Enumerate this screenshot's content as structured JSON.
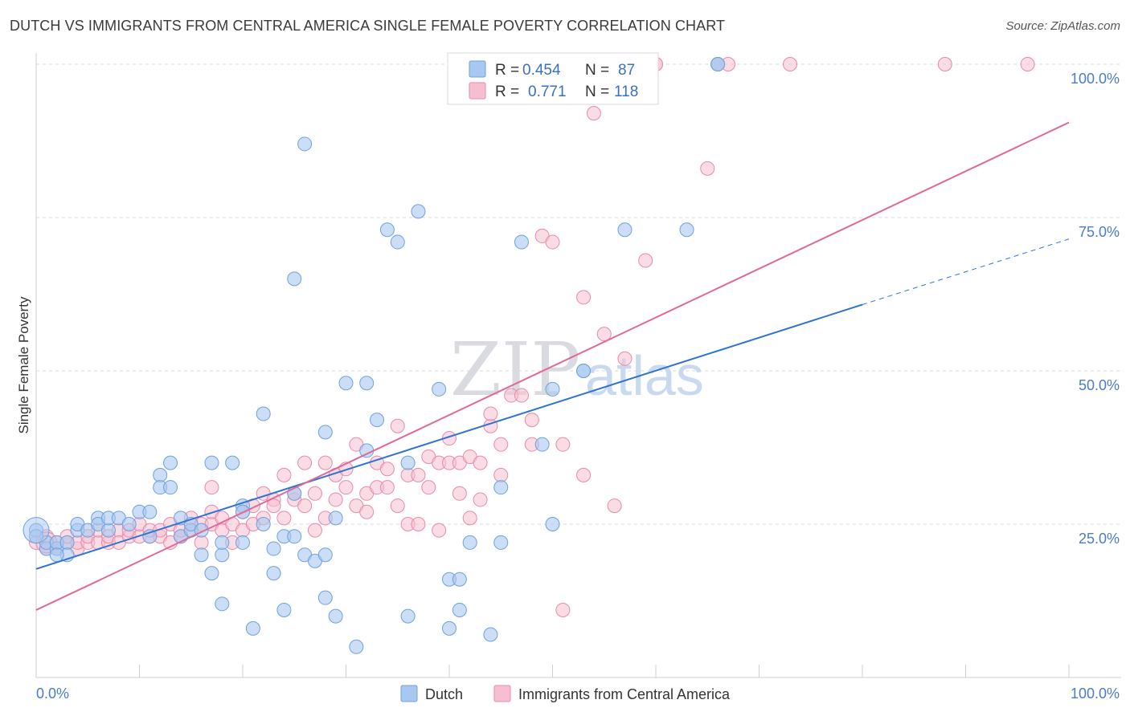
{
  "title": "DUTCH VS IMMIGRANTS FROM CENTRAL AMERICA SINGLE FEMALE POVERTY CORRELATION CHART",
  "source": "Source: ZipAtlas.com",
  "watermark": {
    "zip": "ZIP",
    "atlas": "atlas"
  },
  "colors": {
    "dutch_fill": "#a9c8f0",
    "dutch_stroke": "#6fa0df",
    "dutch_line": "#2f74d0",
    "immigrant_fill": "#f6bfd0",
    "immigrant_stroke": "#e98aab",
    "immigrant_line": "#e0699a",
    "tick_label": "#4a7cc7",
    "grid": "#d8d8d8"
  },
  "legend": {
    "rows": [
      {
        "r_label": "R = ",
        "r_value": "0.454",
        "n_label": "N = ",
        "n_value": "87"
      },
      {
        "r_label": "R = ",
        "r_value": "0.771",
        "n_label": "N = ",
        "n_value": "118"
      }
    ]
  },
  "bottom_legend": {
    "dutch": "Dutch",
    "immigrants": "Immigrants from Central America"
  },
  "chart_data": {
    "type": "scatter",
    "title": "DUTCH VS IMMIGRANTS FROM CENTRAL AMERICA SINGLE FEMALE POVERTY CORRELATION CHART",
    "xlabel": "",
    "ylabel": "Single Female Poverty",
    "xlim": [
      0,
      100
    ],
    "ylim": [
      0,
      100
    ],
    "x_tick_labels": [
      "0.0%",
      "100.0%"
    ],
    "y_tick_labels": [
      "25.0%",
      "50.0%",
      "75.0%",
      "100.0%"
    ],
    "y_ticks": [
      25,
      50,
      75,
      100
    ],
    "grid": "horizontal dashed",
    "legend_position": "top-center",
    "series": [
      {
        "name": "Dutch",
        "R": 0.454,
        "N": 87,
        "trend": {
          "x0": 0,
          "y0": 17.7,
          "x1": 80,
          "y1": 60.8,
          "dashed_to_x": 100,
          "dashed_to_y": 71.5
        },
        "points": [
          [
            0,
            24
          ],
          [
            1,
            21
          ],
          [
            1,
            22
          ],
          [
            2,
            21
          ],
          [
            2,
            22
          ],
          [
            3,
            22
          ],
          [
            4,
            24
          ],
          [
            4,
            25
          ],
          [
            5,
            24
          ],
          [
            6,
            26
          ],
          [
            6,
            25
          ],
          [
            7,
            24
          ],
          [
            7,
            26
          ],
          [
            8,
            26
          ],
          [
            9,
            25
          ],
          [
            10,
            27
          ],
          [
            11,
            27
          ],
          [
            11,
            23
          ],
          [
            12,
            33
          ],
          [
            12,
            31
          ],
          [
            13,
            35
          ],
          [
            13,
            31
          ],
          [
            14,
            26
          ],
          [
            14,
            23
          ],
          [
            15,
            24
          ],
          [
            15,
            25
          ],
          [
            16,
            24
          ],
          [
            16,
            20
          ],
          [
            17,
            17
          ],
          [
            17,
            35
          ],
          [
            18,
            20
          ],
          [
            18,
            22
          ],
          [
            18,
            12
          ],
          [
            19,
            35
          ],
          [
            20,
            22
          ],
          [
            20,
            28
          ],
          [
            20,
            27
          ],
          [
            21,
            8
          ],
          [
            22,
            25
          ],
          [
            22,
            43
          ],
          [
            23,
            17
          ],
          [
            23,
            21
          ],
          [
            24,
            23
          ],
          [
            24,
            11
          ],
          [
            25,
            23
          ],
          [
            25,
            30
          ],
          [
            25,
            65
          ],
          [
            26,
            20
          ],
          [
            26,
            87
          ],
          [
            27,
            19
          ],
          [
            28,
            13
          ],
          [
            28,
            20
          ],
          [
            28,
            40
          ],
          [
            29,
            26
          ],
          [
            29,
            10
          ],
          [
            30,
            48
          ],
          [
            31,
            5
          ],
          [
            32,
            48
          ],
          [
            32,
            37
          ],
          [
            33,
            42
          ],
          [
            34,
            73
          ],
          [
            35,
            71
          ],
          [
            36,
            35
          ],
          [
            36,
            10
          ],
          [
            37,
            76
          ],
          [
            39,
            47
          ],
          [
            40,
            16
          ],
          [
            40,
            8
          ],
          [
            41,
            11
          ],
          [
            41,
            16
          ],
          [
            42,
            22
          ],
          [
            44,
            7
          ],
          [
            45,
            31
          ],
          [
            45,
            22
          ],
          [
            47,
            71
          ],
          [
            49,
            38
          ],
          [
            50,
            47
          ],
          [
            50,
            25
          ],
          [
            53,
            50
          ],
          [
            53,
            50
          ],
          [
            57,
            73
          ],
          [
            63,
            73
          ],
          [
            66,
            100
          ],
          [
            66,
            100
          ],
          [
            0,
            23
          ],
          [
            3,
            20
          ],
          [
            2,
            20
          ]
        ]
      },
      {
        "name": "Immigrants from Central America",
        "R": 0.771,
        "N": 118,
        "trend": {
          "x0": 0,
          "y0": 11.0,
          "x1": 100,
          "y1": 90.5
        },
        "points": [
          [
            0,
            22
          ],
          [
            1,
            21
          ],
          [
            1,
            23
          ],
          [
            2,
            22
          ],
          [
            2,
            21
          ],
          [
            3,
            22
          ],
          [
            3,
            23
          ],
          [
            4,
            21
          ],
          [
            4,
            22
          ],
          [
            5,
            22
          ],
          [
            5,
            23
          ],
          [
            6,
            22
          ],
          [
            6,
            24
          ],
          [
            7,
            22
          ],
          [
            7,
            23
          ],
          [
            8,
            24
          ],
          [
            8,
            22
          ],
          [
            9,
            23
          ],
          [
            9,
            24
          ],
          [
            10,
            23
          ],
          [
            10,
            25
          ],
          [
            11,
            23
          ],
          [
            11,
            24
          ],
          [
            12,
            23
          ],
          [
            12,
            24
          ],
          [
            13,
            25
          ],
          [
            13,
            22
          ],
          [
            14,
            23
          ],
          [
            14,
            24
          ],
          [
            15,
            24
          ],
          [
            15,
            26
          ],
          [
            16,
            25
          ],
          [
            16,
            22
          ],
          [
            17,
            25
          ],
          [
            17,
            27
          ],
          [
            17,
            31
          ],
          [
            18,
            26
          ],
          [
            18,
            24
          ],
          [
            19,
            25
          ],
          [
            19,
            22
          ],
          [
            20,
            27
          ],
          [
            20,
            24
          ],
          [
            21,
            28
          ],
          [
            21,
            25
          ],
          [
            22,
            26
          ],
          [
            22,
            30
          ],
          [
            23,
            29
          ],
          [
            23,
            28
          ],
          [
            24,
            26
          ],
          [
            24,
            33
          ],
          [
            25,
            29
          ],
          [
            25,
            30
          ],
          [
            26,
            35
          ],
          [
            26,
            28
          ],
          [
            27,
            30
          ],
          [
            27,
            24
          ],
          [
            28,
            26
          ],
          [
            28,
            35
          ],
          [
            29,
            29
          ],
          [
            29,
            33
          ],
          [
            30,
            31
          ],
          [
            30,
            34
          ],
          [
            31,
            28
          ],
          [
            31,
            38
          ],
          [
            32,
            30
          ],
          [
            32,
            27
          ],
          [
            33,
            35
          ],
          [
            33,
            31
          ],
          [
            34,
            31
          ],
          [
            34,
            34
          ],
          [
            35,
            28
          ],
          [
            35,
            41
          ],
          [
            36,
            25
          ],
          [
            36,
            33
          ],
          [
            37,
            25
          ],
          [
            37,
            33
          ],
          [
            38,
            36
          ],
          [
            38,
            31
          ],
          [
            39,
            35
          ],
          [
            39,
            24
          ],
          [
            40,
            35
          ],
          [
            40,
            39
          ],
          [
            41,
            35
          ],
          [
            41,
            30
          ],
          [
            42,
            36
          ],
          [
            42,
            26
          ],
          [
            43,
            35
          ],
          [
            43,
            29
          ],
          [
            44,
            41
          ],
          [
            44,
            43
          ],
          [
            45,
            33
          ],
          [
            45,
            38
          ],
          [
            46,
            46
          ],
          [
            47,
            46
          ],
          [
            48,
            42
          ],
          [
            48,
            38
          ],
          [
            49,
            72
          ],
          [
            50,
            71
          ],
          [
            51,
            11
          ],
          [
            51,
            38
          ],
          [
            53,
            62
          ],
          [
            53,
            33
          ],
          [
            54,
            100
          ],
          [
            54,
            92
          ],
          [
            55,
            56
          ],
          [
            56,
            100
          ],
          [
            56,
            28
          ],
          [
            57,
            52
          ],
          [
            58,
            100
          ],
          [
            59,
            68
          ],
          [
            60,
            100
          ],
          [
            60,
            100
          ],
          [
            65,
            83
          ],
          [
            66,
            100
          ],
          [
            67,
            100
          ],
          [
            73,
            100
          ],
          [
            88,
            100
          ],
          [
            96,
            100
          ]
        ]
      }
    ]
  }
}
